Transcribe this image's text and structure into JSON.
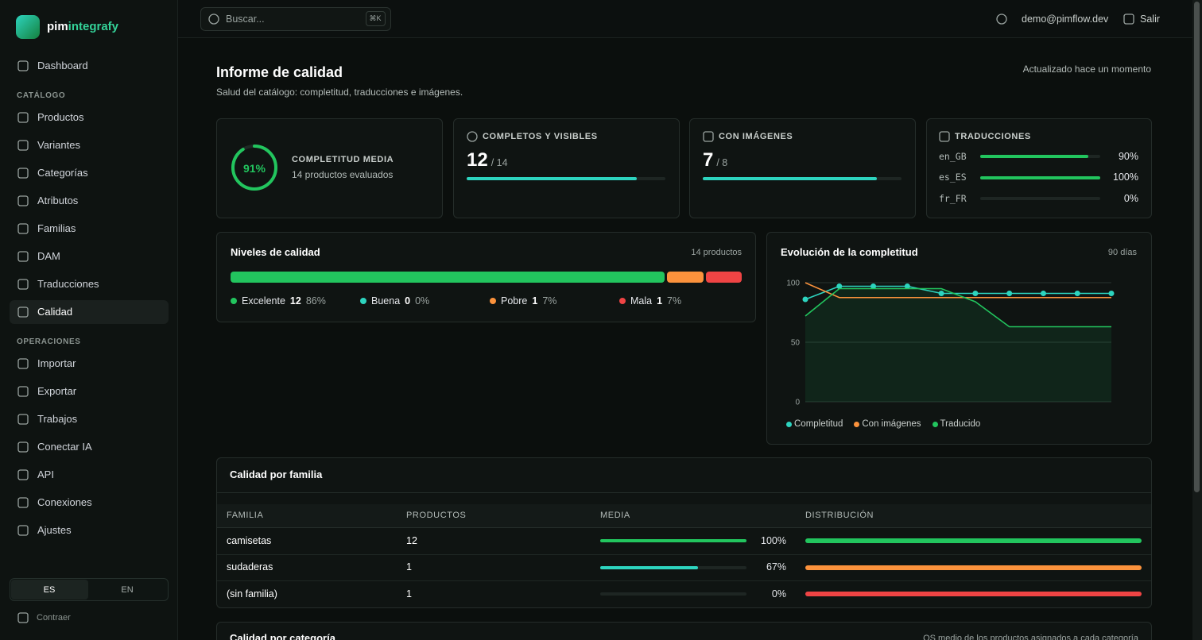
{
  "brand": {
    "prefix": "pim",
    "suffix": "integrafy"
  },
  "search": {
    "placeholder": "Buscar...",
    "shortcut": "⌘K"
  },
  "user": {
    "email": "demo@pimflow.dev",
    "logout": "Salir"
  },
  "nav": {
    "top": [
      {
        "label": "Dashboard"
      }
    ],
    "sections": [
      {
        "title": "CATÁLOGO",
        "items": [
          {
            "label": "Productos"
          },
          {
            "label": "Variantes"
          },
          {
            "label": "Categorías"
          },
          {
            "label": "Atributos"
          },
          {
            "label": "Familias"
          },
          {
            "label": "DAM"
          },
          {
            "label": "Traducciones"
          },
          {
            "label": "Calidad",
            "active": true
          }
        ]
      },
      {
        "title": "OPERACIONES",
        "items": [
          {
            "label": "Importar"
          },
          {
            "label": "Exportar"
          },
          {
            "label": "Trabajos"
          },
          {
            "label": "Conectar IA"
          },
          {
            "label": "API"
          },
          {
            "label": "Conexiones"
          },
          {
            "label": "Ajustes"
          }
        ]
      }
    ]
  },
  "language": [
    {
      "label": "ES",
      "active": true
    },
    {
      "label": "EN"
    }
  ],
  "collapse": "Contraer",
  "page": {
    "title": "Informe de calidad",
    "subtitle": "Salud del catálogo: completitud, traducciones e imágenes.",
    "updated": "Actualizado hace un momento"
  },
  "summary": {
    "completeness": {
      "label": "COMPLETITUD MEDIA",
      "value": 91,
      "value_label": "91%",
      "detail": "14 productos evaluados",
      "color": "#22c55e"
    },
    "complete_visible": {
      "label": "COMPLETOS Y VISIBLES",
      "value": 12,
      "total": 14,
      "total_label": "/ 14",
      "color": "#2dd4bf"
    },
    "with_images": {
      "label": "CON IMÁGENES",
      "value": 7,
      "total": 8,
      "total_label": "/ 8",
      "color": "#2dd4bf"
    },
    "translations": {
      "label": "TRADUCCIONES",
      "color": "#22c55e",
      "rows": [
        {
          "locale": "en_GB",
          "value": 90,
          "value_label": "90%"
        },
        {
          "locale": "es_ES",
          "value": 100,
          "value_label": "100%"
        },
        {
          "locale": "fr_FR",
          "value": 0,
          "value_label": "0%"
        }
      ]
    }
  },
  "quality_levels": {
    "title": "Niveles de calidad",
    "note": "14 productos",
    "levels": [
      {
        "name": "Excelente",
        "count": 12,
        "share": 86,
        "share_label": "86%",
        "color": "#22c55e"
      },
      {
        "name": "Buena",
        "count": 0,
        "share": 0,
        "share_label": "0%",
        "color": "#2dd4bf"
      },
      {
        "name": "Pobre",
        "count": 1,
        "share": 7,
        "share_label": "7%",
        "color": "#fb923c"
      },
      {
        "name": "Mala",
        "count": 1,
        "share": 7,
        "share_label": "7%",
        "color": "#ef4444"
      }
    ]
  },
  "chart_data": {
    "type": "line",
    "title": "Evolución de la completitud",
    "subtitle": "90 días",
    "categories": [
      null,
      null,
      null,
      null,
      null,
      null,
      null,
      null,
      null,
      null
    ],
    "ylim": [
      0,
      100
    ],
    "yticks": [
      0,
      50,
      100
    ],
    "grid": true,
    "series": [
      {
        "name": "Completitud",
        "color": "#2dd4bf",
        "markers": true,
        "values": [
          86,
          97,
          97,
          97,
          91,
          91,
          91,
          91,
          91,
          91
        ]
      },
      {
        "name": "Con imágenes",
        "color": "#fb923c",
        "values": [
          100,
          87.5,
          87.5,
          87.5,
          87.5,
          87.5,
          87.5,
          87.5,
          87.5,
          87.5
        ]
      },
      {
        "name": "Traducido",
        "color": "#22c55e",
        "fill": true,
        "values": [
          72,
          95,
          95,
          95,
          95,
          84,
          63,
          63,
          63,
          63
        ]
      }
    ]
  },
  "family_table": {
    "title": "Calidad por familia",
    "columns": [
      "FAMILIA",
      "PRODUCTOS",
      "MEDIA",
      "DISTRIBUCIÓN"
    ],
    "rows": [
      {
        "family": "camisetas",
        "products": 12,
        "mean": 100,
        "mean_label": "100%",
        "mean_color": "#22c55e",
        "distribution": [
          12,
          0,
          0,
          0
        ]
      },
      {
        "family": "sudaderas",
        "products": 1,
        "mean": 67,
        "mean_label": "67%",
        "mean_color": "#2dd4bf",
        "distribution": [
          0,
          0,
          1,
          0
        ]
      },
      {
        "family": "(sin familia)",
        "products": 1,
        "mean": 0,
        "mean_label": "0%",
        "mean_color": "#2dd4bf",
        "distribution": [
          0,
          0,
          0,
          1
        ]
      }
    ]
  },
  "category_section": {
    "title": "Calidad por categoría",
    "note": "QS medio de los productos asignados a cada categoría"
  }
}
